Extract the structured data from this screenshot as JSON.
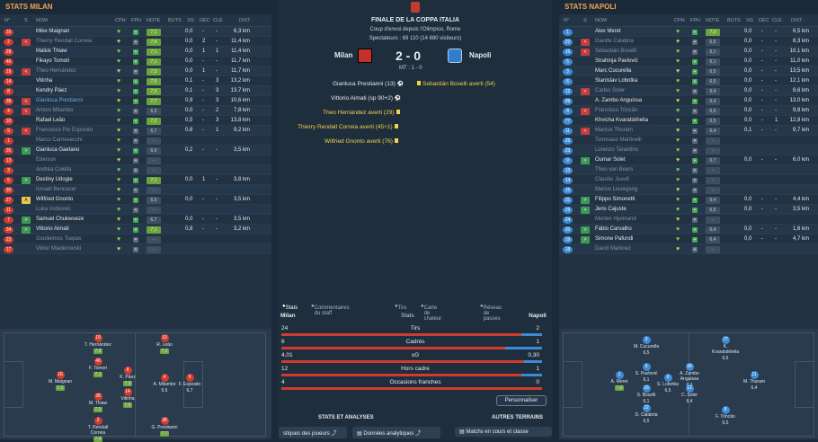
{
  "left": {
    "title": "STATS MILAN",
    "headers": {
      "no": "N°",
      "s": "S",
      "nom": "NOM",
      "cph": "CPH",
      "fph": "FPH",
      "note": "NOTE",
      "buts": "BUTS",
      "xg": "XG",
      "dec": "DÉC",
      "cle": "CLÉ",
      "dist": "DIST"
    },
    "rows": [
      {
        "num": "16",
        "name": "Mike Maignan",
        "rate": "7,1",
        "xg": "0,0",
        "dec": "-",
        "cle": "-",
        "dist": "6,3 km"
      },
      {
        "num": "2",
        "sub": "<",
        "name": "Thierry Rendall Correia",
        "dim": true,
        "rate": "7,4",
        "xg": "0,0",
        "dec": "2",
        "cle": "-",
        "dist": "11,4 km"
      },
      {
        "num": "28",
        "name": "Malick Thiaw",
        "rate": "7,1",
        "xg": "0,0",
        "dec": "1",
        "cle": "1",
        "dist": "11,4 km"
      },
      {
        "num": "46",
        "name": "Fikayo Tomori",
        "rate": "7,1",
        "xg": "0,0",
        "dec": "-",
        "cle": "-",
        "dist": "11,7 km"
      },
      {
        "num": "19",
        "sub": "<",
        "name": "Theo Hernández",
        "dim": true,
        "rate": "7,3",
        "xg": "0,0",
        "dec": "1",
        "cle": "-",
        "dist": "11,7 km"
      },
      {
        "num": "14",
        "name": "Vitinha",
        "rate": "7,5",
        "xg": "0,1",
        "dec": "-",
        "cle": "3",
        "dist": "13,2 km"
      },
      {
        "num": "8",
        "name": "Kendry Páez",
        "rate": "7,3",
        "xg": "0,1",
        "dec": "-",
        "cle": "3",
        "dist": "13,7 km"
      },
      {
        "num": "38",
        "sub": "<",
        "name": "Gianluca Prestianni",
        "hl": true,
        "rate": "7,7",
        "xg": "0,9",
        "dec": "-",
        "cle": "3",
        "dist": "10,6 km"
      },
      {
        "num": "4",
        "sub": "<",
        "name": "Antoni Milambo",
        "dim": true,
        "rate": "6,5",
        "xg": "0,0",
        "dec": "-",
        "cle": "2",
        "dist": "7,8 km"
      },
      {
        "num": "10",
        "name": "Rafael Leão",
        "rate": "7,2",
        "xg": "0,5",
        "dec": "-",
        "cle": "3",
        "dist": "13,8 km"
      },
      {
        "num": "9",
        "sub": "<",
        "name": "Francesco Pio Esposito",
        "dim": true,
        "rate": "6,7",
        "xg": "0,8",
        "dec": "-",
        "cle": "1",
        "dist": "9,2 km"
      },
      {
        "num": "1",
        "name": "Marco Carnesecchi",
        "dim": true,
        "rate": "-",
        "xg": "",
        "dec": "",
        "cle": "",
        "dist": ""
      },
      {
        "num": "20",
        "sub": ">",
        "name": "Gianluca Gaetano",
        "rate": "6,6",
        "xg": "0,2",
        "dec": "-",
        "cle": "-",
        "dist": "3,5 km"
      },
      {
        "num": "13",
        "name": "Ederson",
        "dim": true,
        "rate": "-",
        "xg": "",
        "dec": "",
        "cle": "",
        "dist": ""
      },
      {
        "num": "3",
        "name": "Andrea Colella",
        "dim": true,
        "rate": "-",
        "xg": "",
        "dec": "",
        "cle": "",
        "dist": ""
      },
      {
        "num": "5",
        "sub": ">",
        "name": "Destiny Udogie",
        "rate": "7,1",
        "xg": "0,0",
        "dec": "1",
        "cle": "-",
        "dist": "3,8 km"
      },
      {
        "num": "30",
        "name": "Ismaël Bennacer",
        "dim": true,
        "rate": "-",
        "xg": "",
        "dec": "",
        "cle": "",
        "dist": ""
      },
      {
        "num": "27",
        "sub": "A",
        "name": "Wilfried Gnonto",
        "rate": "6,5",
        "xg": "0,0",
        "dec": "-",
        "cle": "-",
        "dist": "3,5 km"
      },
      {
        "num": "11",
        "name": "Luka Vušković",
        "dim": true,
        "rate": "-",
        "xg": "",
        "dec": "",
        "cle": "",
        "dist": ""
      },
      {
        "num": "7",
        "sub": ">",
        "name": "Samuel Chukwueze",
        "rate": "6,7",
        "xg": "0,0",
        "dec": "-",
        "cle": "-",
        "dist": "3,5 km"
      },
      {
        "num": "34",
        "sub": ">",
        "name": "Vittorio Aimati",
        "rate": "7,1",
        "xg": "0,8",
        "dec": "-",
        "cle": "-",
        "dist": "3,2 km"
      },
      {
        "num": "23",
        "name": "Goulielmos Tsepas",
        "dim": true,
        "rate": "-",
        "xg": "",
        "dec": "",
        "cle": "",
        "dist": ""
      },
      {
        "num": "17",
        "name": "Viktor Mladenovski",
        "dim": true,
        "rate": "-",
        "xg": "",
        "dec": "",
        "cle": "",
        "dist": ""
      }
    ],
    "pitch": [
      {
        "num": "16",
        "name": "M. Maignan",
        "rate": "7,1"
      },
      {
        "num": "19",
        "name": "T. Hernández",
        "rate": "7,3"
      },
      {
        "num": "46",
        "name": "F. Tomori",
        "rate": "7,1"
      },
      {
        "num": "28",
        "name": "M. Thiaw",
        "rate": "7,1"
      },
      {
        "num": "2",
        "name": "T. Rendall Correia",
        "rate": "7,4"
      },
      {
        "num": "8",
        "name": "K. Páez",
        "rate": "7,3"
      },
      {
        "num": "14",
        "name": "Vitinha",
        "rate": "7,5"
      },
      {
        "num": "10",
        "name": "R. Leão",
        "rate": "7,2"
      },
      {
        "num": "4",
        "name": "A. Milambo",
        "rate": "6,5"
      },
      {
        "num": "38",
        "name": "G. Prestianni",
        "rate": "7,7"
      },
      {
        "num": "9",
        "name": "F. Esposito",
        "rate": "6,7"
      }
    ]
  },
  "center": {
    "title": "FINALE DE LA COPPA ITALIA",
    "kickoff": "Coup d'envoi depuis l'Olimpico, Rome",
    "spectators": "Spectateurs : 69 110 (14 680 visiteurs)",
    "home": "Milan",
    "away": "Napoli",
    "score": "2 - 0",
    "ht": "MT : 1 - 0",
    "events_home": [
      "Gianluca Prestianni (13)",
      "Vittorio Aimati (sp 90+2)",
      "Theo Hernández averti (29)",
      "Thierry Rendall Correia averti (45+1)",
      "Wilfried Gnonto averti (76)"
    ],
    "events_away": [
      "Sebastián Boselli averti (54)"
    ],
    "tabs": [
      "Stats",
      "Commentaires du staff",
      "Tirs",
      "Carte de chaleur",
      "Réseau de passes"
    ],
    "stats_title": "Stats",
    "stats": [
      {
        "label": "Tirs",
        "home": "24",
        "away": "2",
        "hf": 0.92
      },
      {
        "label": "Cadrés",
        "home": "6",
        "away": "1",
        "hf": 0.86
      },
      {
        "label": "xG",
        "home": "4,01",
        "away": "0,30",
        "hf": 0.93
      },
      {
        "label": "Hors cadre",
        "home": "12",
        "away": "1",
        "hf": 0.92
      },
      {
        "label": "Occasions franches",
        "home": "4",
        "away": "0",
        "hf": 1.0
      }
    ],
    "customize": "Personnaliser",
    "section_left": "STATS ET ANALYSES",
    "section_right": "AUTRES TERRAINS",
    "btn1": "stiques des joueurs",
    "btn2": "Données analytiques",
    "btn3": "Matchs en cours et classe"
  },
  "right": {
    "title": "STATS NAPOLI",
    "headers": {
      "no": "N°",
      "s": "S",
      "nom": "NOM",
      "cph": "CPH",
      "fph": "FPH",
      "note": "NOTE",
      "buts": "BUTS",
      "xg": "XG",
      "dec": "DÉC",
      "cle": "CLÉ",
      "dist": "DIST"
    },
    "rows": [
      {
        "num": "1",
        "name": "Alex Meret",
        "rate": "7,0",
        "xg": "0,0",
        "dec": "-",
        "cle": "-",
        "dist": "6,5 km"
      },
      {
        "num": "22",
        "sub": "<",
        "name": "Davide Calabria",
        "dim": true,
        "rate": "6,5",
        "xg": "0,0",
        "dec": "-",
        "cle": "-",
        "dist": "8,3 km"
      },
      {
        "num": "16",
        "sub": "<",
        "name": "Sebastián Boselli",
        "dim": true,
        "rate": "6,1",
        "xg": "0,0",
        "dec": "-",
        "cle": "-",
        "dist": "10,1 km"
      },
      {
        "num": "5",
        "name": "Strahinja Pavlović",
        "rate": "6,1",
        "xg": "0,0",
        "dec": "-",
        "cle": "-",
        "dist": "11,0 km"
      },
      {
        "num": "3",
        "name": "Marc Cucurella",
        "rate": "6,5",
        "xg": "0,0",
        "dec": "-",
        "cle": "-",
        "dist": "13,5 km"
      },
      {
        "num": "6",
        "name": "Stanislav Lobotka",
        "rate": "6,5",
        "xg": "0,0",
        "dec": "-",
        "cle": "-",
        "dist": "12,1 km"
      },
      {
        "num": "12",
        "sub": "<",
        "name": "Carlos Soler",
        "dim": true,
        "rate": "6,4",
        "xg": "0,0",
        "dec": "-",
        "cle": "-",
        "dist": "8,6 km"
      },
      {
        "num": "99",
        "name": "A. Zambo Anguissa",
        "rate": "6,4",
        "xg": "0,0",
        "dec": "-",
        "cle": "-",
        "dist": "13,0 km"
      },
      {
        "num": "8",
        "sub": "<",
        "name": "Francisco Trincão",
        "dim": true,
        "rate": "6,5",
        "xg": "0,0",
        "dec": "-",
        "cle": "-",
        "dist": "9,8 km"
      },
      {
        "num": "77",
        "name": "Khvicha Kvaratskhelia",
        "rate": "6,5",
        "xg": "0,0",
        "dec": "-",
        "cle": "1",
        "dist": "12,8 km"
      },
      {
        "num": "11",
        "sub": "<",
        "name": "Marcus Thuram",
        "dim": true,
        "rate": "6,4",
        "xg": "0,1",
        "dec": "-",
        "cle": "-",
        "dist": "9,7 km"
      },
      {
        "num": "25",
        "name": "Tommaso Martinelli",
        "dim": true,
        "rate": "-",
        "xg": "",
        "dec": "",
        "cle": "",
        "dist": ""
      },
      {
        "num": "23",
        "name": "Lorenzo Tarantino",
        "dim": true,
        "rate": "-",
        "xg": "",
        "dec": "",
        "cle": "",
        "dist": ""
      },
      {
        "num": "9",
        "sub": ">",
        "name": "Oumar Solet",
        "rate": "6,7",
        "xg": "0,0",
        "dec": "-",
        "cle": "-",
        "dist": "6,0 km"
      },
      {
        "num": "13",
        "name": "Theo van Beers",
        "dim": true,
        "rate": "-",
        "xg": "",
        "dec": "",
        "cle": "",
        "dist": ""
      },
      {
        "num": "14",
        "name": "Claudio Jusufi",
        "dim": true,
        "rate": "-",
        "xg": "",
        "dec": "",
        "cle": "",
        "dist": ""
      },
      {
        "num": "15",
        "name": "Marius Liesegang",
        "dim": true,
        "rate": "-",
        "xg": "",
        "dec": "",
        "cle": "",
        "dist": ""
      },
      {
        "num": "31",
        "sub": ">",
        "name": "Filippo Simonetti",
        "rate": "6,4",
        "xg": "0,0",
        "dec": "-",
        "cle": "-",
        "dist": "4,4 km"
      },
      {
        "num": "29",
        "sub": ">",
        "name": "Jens Cajuste",
        "rate": "6,5",
        "xg": "0,0",
        "dec": "-",
        "cle": "-",
        "dist": "3,5 km"
      },
      {
        "num": "24",
        "name": "Morten Hjulmand",
        "dim": true,
        "rate": "-",
        "xg": "",
        "dec": "",
        "cle": "",
        "dist": ""
      },
      {
        "num": "20",
        "sub": ">",
        "name": "Fábio Carvalho",
        "rate": "6,4",
        "xg": "0,0",
        "dec": "-",
        "cle": "-",
        "dist": "1,6 km"
      },
      {
        "num": "19",
        "sub": ">",
        "name": "Simone Pafundi",
        "rate": "6,4",
        "xg": "0,0",
        "dec": "-",
        "cle": "-",
        "dist": "4,7 km"
      },
      {
        "num": "18",
        "name": "David Martinez",
        "dim": true,
        "rate": "-",
        "xg": "",
        "dec": "",
        "cle": "",
        "dist": ""
      }
    ],
    "pitch": [
      {
        "num": "1",
        "name": "A. Meret",
        "rate": "7,0"
      },
      {
        "num": "3",
        "name": "M. Cucurella",
        "rate": "6,5"
      },
      {
        "num": "5",
        "name": "S. Pavlović",
        "rate": "6,1"
      },
      {
        "num": "16",
        "name": "S. Boselli",
        "rate": "6,1"
      },
      {
        "num": "22",
        "name": "D. Calabria",
        "rate": "6,5"
      },
      {
        "num": "6",
        "name": "S. Lobotka",
        "rate": "6,5"
      },
      {
        "num": "99",
        "name": "A. Zambo Anguissa",
        "rate": "6,4"
      },
      {
        "num": "12",
        "name": "C. Soler",
        "rate": "6,4"
      },
      {
        "num": "77",
        "name": "K. Kvaratskhelia",
        "rate": "6,5"
      },
      {
        "num": "8",
        "name": "F. Trincão",
        "rate": "6,5"
      },
      {
        "num": "11",
        "name": "M. Thuram",
        "rate": "6,4"
      }
    ]
  },
  "colors": {
    "milan": "#d23a2e",
    "napoli": "#3b8bd6",
    "rating": "#6ba43c",
    "accent": "#f0a54a"
  }
}
